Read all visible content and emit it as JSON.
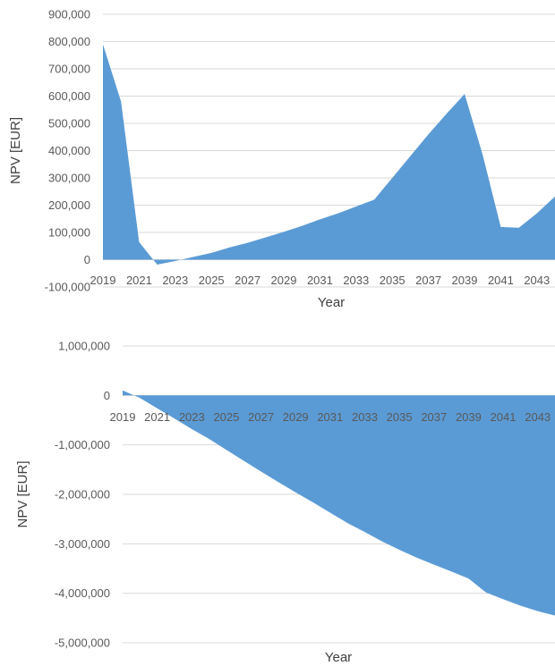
{
  "chart_data": [
    {
      "type": "area",
      "title": "",
      "xlabel": "Year",
      "ylabel": "NPV [EUR]",
      "ylim": [
        -100000,
        900000
      ],
      "xlim": [
        2019,
        2044
      ],
      "grid": true,
      "legend": "none",
      "color": "#5b9bd5",
      "y_ticks": [
        -100000,
        0,
        100000,
        200000,
        300000,
        400000,
        500000,
        600000,
        700000,
        800000,
        900000
      ],
      "y_tick_labels": [
        "-100,000",
        "0",
        "100,000",
        "200,000",
        "300,000",
        "400,000",
        "500,000",
        "600,000",
        "700,000",
        "800,000",
        "900,000"
      ],
      "x_tick_labels": [
        "2019",
        "2021",
        "2023",
        "2025",
        "2027",
        "2029",
        "2031",
        "2033",
        "2035",
        "2037",
        "2039",
        "2041",
        "2043"
      ],
      "x": [
        2019,
        2020,
        2021,
        2022,
        2023,
        2024,
        2025,
        2026,
        2027,
        2028,
        2029,
        2030,
        2031,
        2032,
        2033,
        2034,
        2035,
        2036,
        2037,
        2038,
        2039,
        2040,
        2041,
        2042,
        2043,
        2044
      ],
      "values": [
        790000,
        580000,
        65000,
        -18000,
        -5000,
        10000,
        25000,
        45000,
        62000,
        82000,
        102000,
        124000,
        148000,
        170000,
        195000,
        220000,
        300000,
        380000,
        460000,
        535000,
        608000,
        385000,
        120000,
        117000,
        170000,
        232000
      ]
    },
    {
      "type": "area",
      "title": "",
      "xlabel": "Year",
      "ylabel": "NPV [EUR]",
      "ylim": [
        -5000000,
        1000000
      ],
      "xlim": [
        2019,
        2044
      ],
      "grid": true,
      "legend": "none",
      "color": "#5b9bd5",
      "y_ticks": [
        -5000000,
        -4000000,
        -3000000,
        -2000000,
        -1000000,
        0,
        1000000
      ],
      "y_tick_labels": [
        "-5,000,000",
        "-4,000,000",
        "-3,000,000",
        "-2,000,000",
        "-1,000,000",
        "0",
        "1,000,000"
      ],
      "x_tick_labels": [
        "2019",
        "2021",
        "2023",
        "2025",
        "2027",
        "2029",
        "2031",
        "2033",
        "2035",
        "2037",
        "2039",
        "2041",
        "2043"
      ],
      "x": [
        2019,
        2020,
        2021,
        2022,
        2023,
        2024,
        2025,
        2026,
        2027,
        2028,
        2029,
        2030,
        2031,
        2032,
        2033,
        2034,
        2035,
        2036,
        2037,
        2038,
        2039,
        2040,
        2041,
        2042,
        2043,
        2044
      ],
      "values": [
        100000,
        -50000,
        -260000,
        -470000,
        -680000,
        -880000,
        -1100000,
        -1320000,
        -1540000,
        -1750000,
        -1960000,
        -2160000,
        -2370000,
        -2580000,
        -2760000,
        -2950000,
        -3120000,
        -3280000,
        -3420000,
        -3560000,
        -3700000,
        -3980000,
        -4120000,
        -4250000,
        -4360000,
        -4450000
      ]
    }
  ]
}
